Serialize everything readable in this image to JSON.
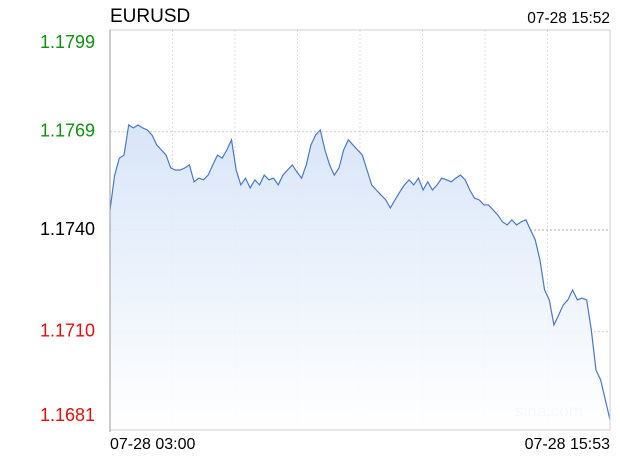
{
  "chart_data": {
    "type": "line",
    "title": "EURUSD",
    "timestamp": "07-28 15:52",
    "x_labels": [
      "07-28 03:00",
      "07-28 15:53"
    ],
    "watermark": "sina.com",
    "color": "#4a78c8",
    "ylim": [
      1.1681,
      1.1799
    ],
    "yticks": [
      1.1681,
      {
        "value": 1.171,
        "label": "1.1710"
      },
      {
        "value": 1.174,
        "label": "1.1740"
      },
      1.1769,
      1.1799
    ],
    "ytick_colors": [
      "#e01010",
      "#e01010",
      "#000000",
      "#109010",
      "#109010"
    ],
    "grid": true,
    "values": [
      1.17459,
      1.17562,
      1.17612,
      1.17621,
      1.1771,
      1.17701,
      1.1771,
      1.17701,
      1.17695,
      1.1768,
      1.17651,
      1.17636,
      1.17621,
      1.17583,
      1.17577,
      1.17577,
      1.17583,
      1.17592,
      1.17542,
      1.17553,
      1.17548,
      1.17562,
      1.17592,
      1.17621,
      1.17612,
      1.17636,
      1.17666,
      1.17577,
      1.17533,
      1.17553,
      1.17524,
      1.17548,
      1.17533,
      1.17562,
      1.17548,
      1.17553,
      1.17533,
      1.17562,
      1.17577,
      1.17592,
      1.17571,
      1.17553,
      1.17592,
      1.17651,
      1.1768,
      1.17695,
      1.17636,
      1.17592,
      1.17562,
      1.17583,
      1.17636,
      1.17666,
      1.17651,
      1.17636,
      1.17621,
      1.17577,
      1.17533,
      1.17518,
      1.17503,
      1.17489,
      1.17465,
      1.17489,
      1.17512,
      1.17533,
      1.17548,
      1.17533,
      1.17553,
      1.17518,
      1.17542,
      1.17518,
      1.17533,
      1.17553,
      1.17548,
      1.17542,
      1.17553,
      1.17562,
      1.17548,
      1.17518,
      1.17494,
      1.17489,
      1.17474,
      1.17474,
      1.17459,
      1.17444,
      1.17424,
      1.17415,
      1.1743,
      1.17415,
      1.17424,
      1.1743,
      1.174,
      1.17371,
      1.17312,
      1.17223,
      1.17194,
      1.1712,
      1.17149,
      1.17179,
      1.17194,
      1.17223,
      1.17194,
      1.17199,
      1.17194,
      1.17105,
      1.16987,
      1.16958,
      1.16899,
      1.1684
    ]
  }
}
